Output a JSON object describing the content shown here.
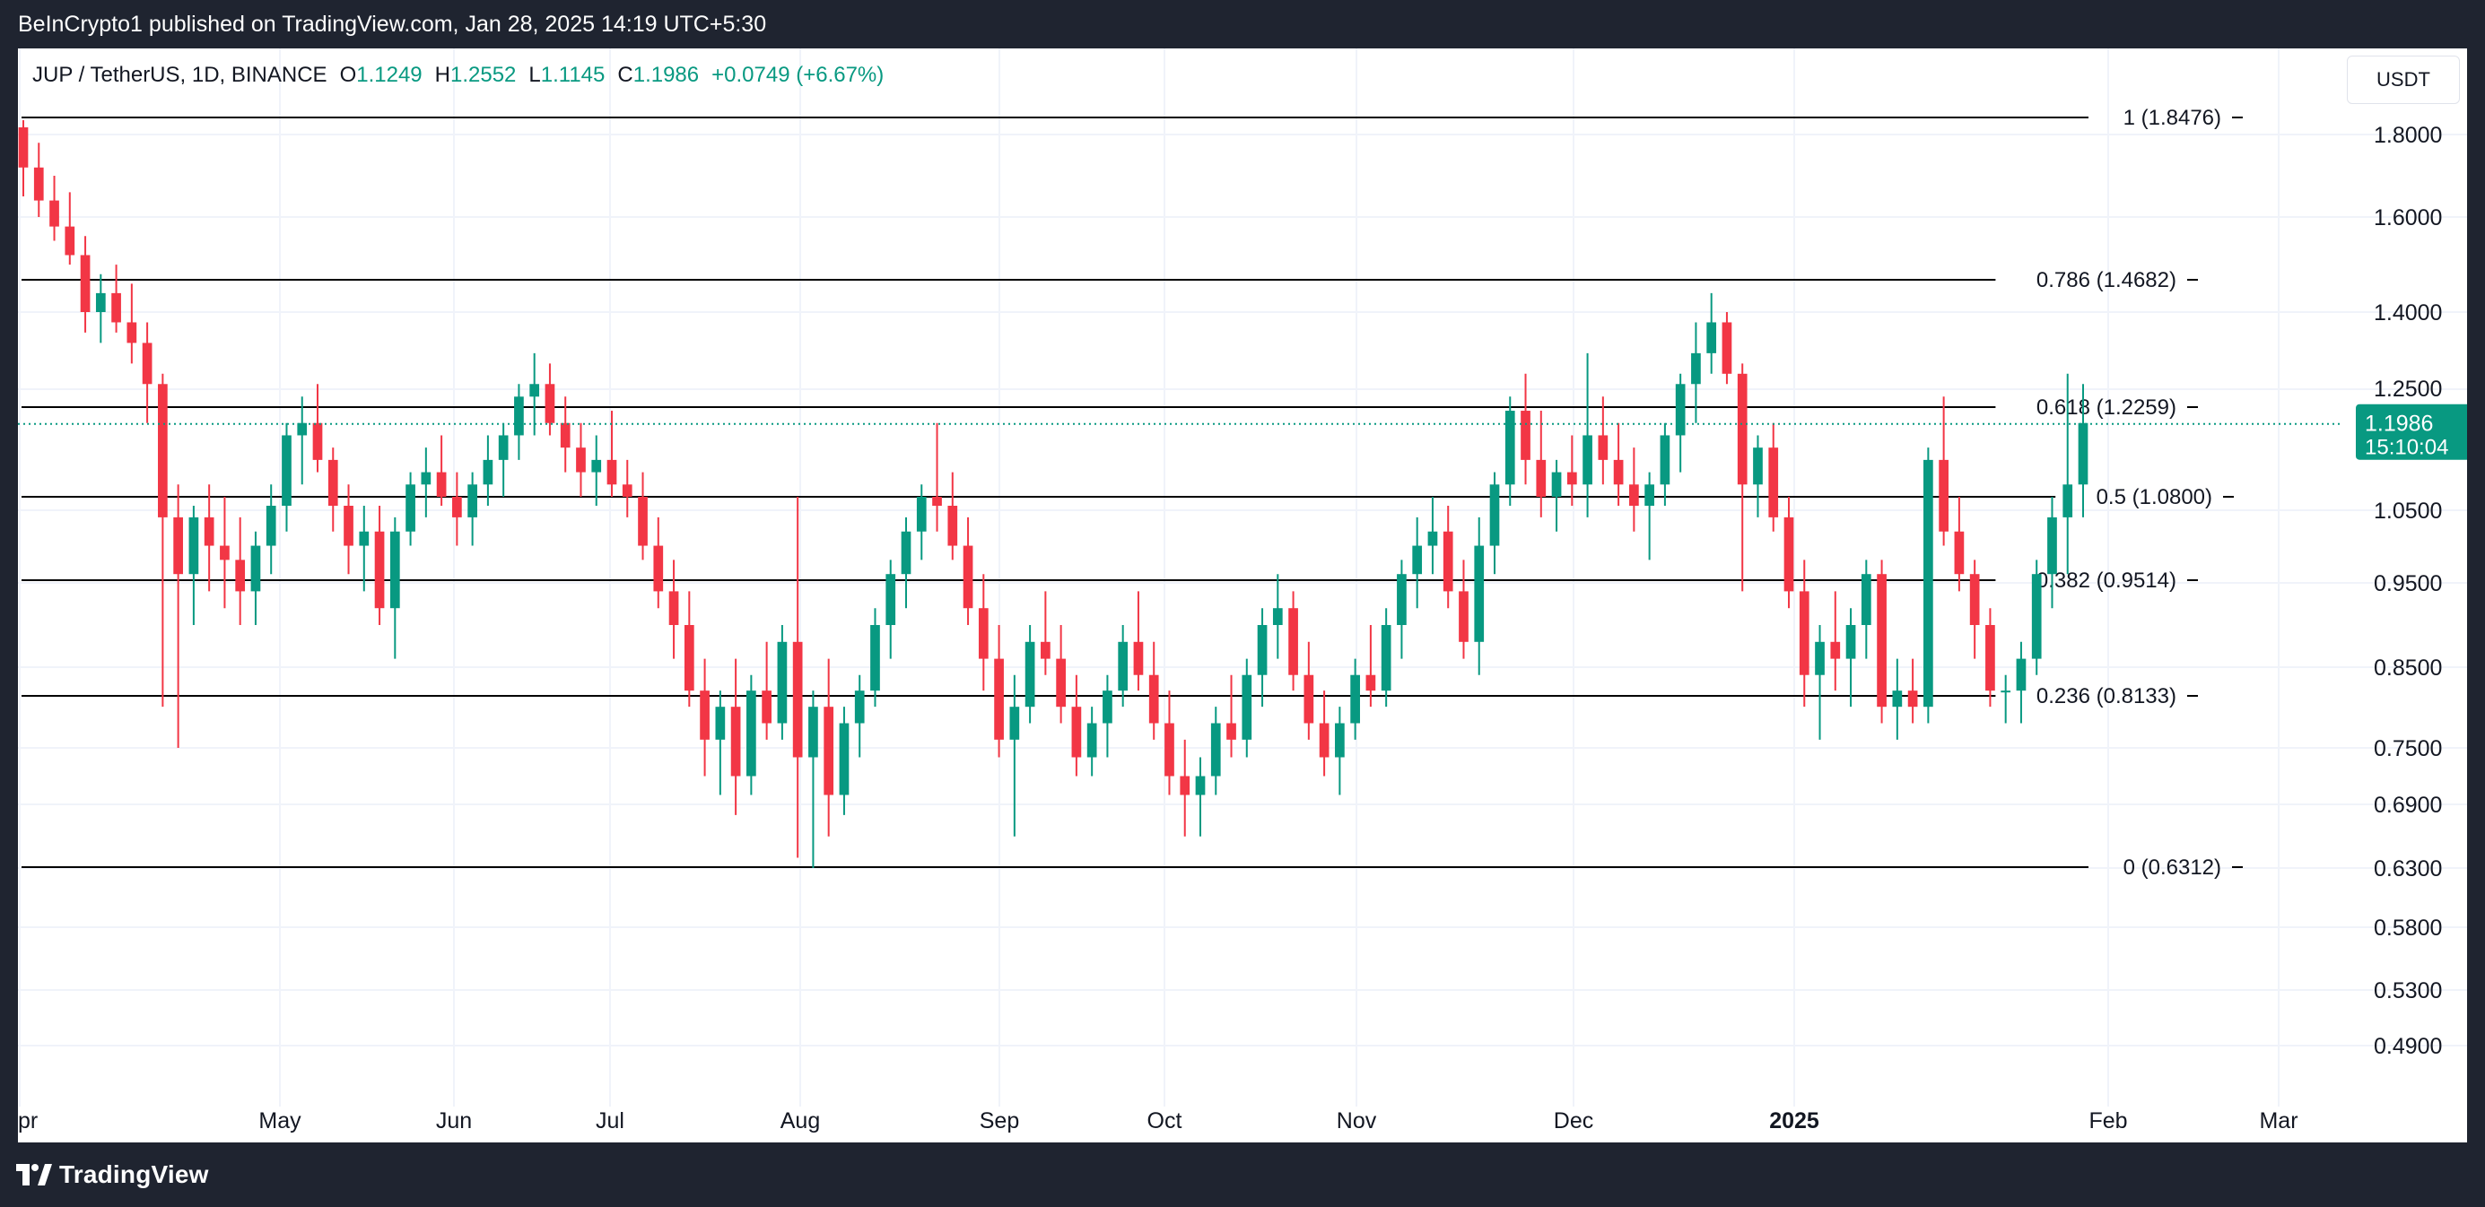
{
  "header": {
    "published_text": "BeInCrypto1 published on TradingView.com, Jan 28, 2025 14:19 UTC+5:30"
  },
  "legend": {
    "symbol": "JUP / TetherUS, 1D, BINANCE",
    "open_label": "O",
    "open_value": "1.1249",
    "high_label": "H",
    "high_value": "1.2552",
    "low_label": "L",
    "low_value": "1.1145",
    "close_label": "C",
    "close_value": "1.1986",
    "change": "+0.0749 (+6.67%)"
  },
  "currency_button": "USDT",
  "footer": {
    "brand": "TradingView"
  },
  "colors": {
    "up": "#089981",
    "down": "#f23645",
    "fib_line": "#000000",
    "last_price_bg": "#089981",
    "grid": "#f0f3fa"
  },
  "chart_data": {
    "type": "candlestick",
    "x_ticks": [
      "pr",
      "May",
      "Jun",
      "Jul",
      "Aug",
      "Sep",
      "Oct",
      "Nov",
      "Dec",
      "2025",
      "Feb",
      "Mar"
    ],
    "y_ticks": [
      "1.8000",
      "1.6000",
      "1.4000",
      "1.2500",
      "1.0500",
      "0.9500",
      "0.8500",
      "0.7500",
      "0.6900",
      "0.6300",
      "0.5800",
      "0.5300",
      "0.4900"
    ],
    "y_tick_values": [
      1.8,
      1.6,
      1.4,
      1.25,
      1.05,
      0.95,
      0.85,
      0.75,
      0.69,
      0.63,
      0.58,
      0.53,
      0.49
    ],
    "fib_levels": [
      {
        "label": "1 (1.8476)",
        "value": 1.8476
      },
      {
        "label": "0.786 (1.4682)",
        "value": 1.4682
      },
      {
        "label": "0.618 (1.2259)",
        "value": 1.2259
      },
      {
        "label": "0.5 (1.0800)",
        "value": 1.08
      },
      {
        "label": "0.382 (0.9514)",
        "value": 0.9514
      },
      {
        "label": "0.236 (0.8133)",
        "value": 0.8133
      },
      {
        "label": "0 (0.6312)",
        "value": 0.6312
      }
    ],
    "last_price": "1.1986",
    "last_price_value": 1.1986,
    "countdown": "15:10:04",
    "candles_ohlc": [
      [
        1.82,
        1.84,
        1.65,
        1.72
      ],
      [
        1.72,
        1.78,
        1.6,
        1.64
      ],
      [
        1.64,
        1.7,
        1.55,
        1.58
      ],
      [
        1.58,
        1.66,
        1.5,
        1.52
      ],
      [
        1.52,
        1.56,
        1.36,
        1.4
      ],
      [
        1.4,
        1.48,
        1.34,
        1.44
      ],
      [
        1.44,
        1.5,
        1.36,
        1.38
      ],
      [
        1.38,
        1.46,
        1.3,
        1.34
      ],
      [
        1.34,
        1.38,
        1.2,
        1.26
      ],
      [
        1.26,
        1.28,
        0.8,
        1.04
      ],
      [
        1.04,
        1.1,
        0.75,
        0.96
      ],
      [
        0.96,
        1.06,
        0.9,
        1.04
      ],
      [
        1.04,
        1.1,
        0.94,
        1.0
      ],
      [
        1.0,
        1.08,
        0.92,
        0.98
      ],
      [
        0.98,
        1.04,
        0.9,
        0.94
      ],
      [
        0.94,
        1.02,
        0.9,
        1.0
      ],
      [
        1.0,
        1.1,
        0.96,
        1.06
      ],
      [
        1.06,
        1.2,
        1.02,
        1.18
      ],
      [
        1.18,
        1.24,
        1.1,
        1.2
      ],
      [
        1.2,
        1.26,
        1.12,
        1.14
      ],
      [
        1.14,
        1.16,
        1.02,
        1.06
      ],
      [
        1.06,
        1.1,
        0.96,
        1.0
      ],
      [
        1.0,
        1.06,
        0.94,
        1.02
      ],
      [
        1.02,
        1.06,
        0.9,
        0.92
      ],
      [
        0.92,
        1.04,
        0.86,
        1.02
      ],
      [
        1.02,
        1.12,
        1.0,
        1.1
      ],
      [
        1.1,
        1.16,
        1.04,
        1.12
      ],
      [
        1.12,
        1.18,
        1.06,
        1.08
      ],
      [
        1.08,
        1.12,
        1.0,
        1.04
      ],
      [
        1.04,
        1.12,
        1.0,
        1.1
      ],
      [
        1.1,
        1.18,
        1.06,
        1.14
      ],
      [
        1.14,
        1.2,
        1.08,
        1.18
      ],
      [
        1.18,
        1.26,
        1.14,
        1.24
      ],
      [
        1.24,
        1.32,
        1.18,
        1.26
      ],
      [
        1.26,
        1.3,
        1.18,
        1.2
      ],
      [
        1.2,
        1.24,
        1.12,
        1.16
      ],
      [
        1.16,
        1.2,
        1.08,
        1.12
      ],
      [
        1.12,
        1.18,
        1.06,
        1.14
      ],
      [
        1.14,
        1.22,
        1.08,
        1.1
      ],
      [
        1.1,
        1.14,
        1.04,
        1.08
      ],
      [
        1.08,
        1.12,
        0.98,
        1.0
      ],
      [
        1.0,
        1.04,
        0.92,
        0.94
      ],
      [
        0.94,
        0.98,
        0.86,
        0.9
      ],
      [
        0.9,
        0.94,
        0.8,
        0.82
      ],
      [
        0.82,
        0.86,
        0.72,
        0.76
      ],
      [
        0.76,
        0.82,
        0.7,
        0.8
      ],
      [
        0.8,
        0.86,
        0.68,
        0.72
      ],
      [
        0.72,
        0.84,
        0.7,
        0.82
      ],
      [
        0.82,
        0.88,
        0.76,
        0.78
      ],
      [
        0.78,
        0.9,
        0.76,
        0.88
      ],
      [
        0.88,
        1.08,
        0.64,
        0.74
      ],
      [
        0.74,
        0.82,
        0.63,
        0.8
      ],
      [
        0.8,
        0.86,
        0.66,
        0.7
      ],
      [
        0.7,
        0.8,
        0.68,
        0.78
      ],
      [
        0.78,
        0.84,
        0.74,
        0.82
      ],
      [
        0.82,
        0.92,
        0.8,
        0.9
      ],
      [
        0.9,
        0.98,
        0.86,
        0.96
      ],
      [
        0.96,
        1.04,
        0.92,
        1.02
      ],
      [
        1.02,
        1.1,
        0.98,
        1.08
      ],
      [
        1.08,
        1.2,
        1.02,
        1.06
      ],
      [
        1.06,
        1.12,
        0.98,
        1.0
      ],
      [
        1.0,
        1.04,
        0.9,
        0.92
      ],
      [
        0.92,
        0.96,
        0.82,
        0.86
      ],
      [
        0.86,
        0.9,
        0.74,
        0.76
      ],
      [
        0.76,
        0.84,
        0.66,
        0.8
      ],
      [
        0.8,
        0.9,
        0.78,
        0.88
      ],
      [
        0.88,
        0.94,
        0.84,
        0.86
      ],
      [
        0.86,
        0.9,
        0.78,
        0.8
      ],
      [
        0.8,
        0.84,
        0.72,
        0.74
      ],
      [
        0.74,
        0.8,
        0.72,
        0.78
      ],
      [
        0.78,
        0.84,
        0.74,
        0.82
      ],
      [
        0.82,
        0.9,
        0.8,
        0.88
      ],
      [
        0.88,
        0.94,
        0.82,
        0.84
      ],
      [
        0.84,
        0.88,
        0.76,
        0.78
      ],
      [
        0.78,
        0.82,
        0.7,
        0.72
      ],
      [
        0.72,
        0.76,
        0.66,
        0.7
      ],
      [
        0.7,
        0.74,
        0.66,
        0.72
      ],
      [
        0.72,
        0.8,
        0.7,
        0.78
      ],
      [
        0.78,
        0.84,
        0.74,
        0.76
      ],
      [
        0.76,
        0.86,
        0.74,
        0.84
      ],
      [
        0.84,
        0.92,
        0.8,
        0.9
      ],
      [
        0.9,
        0.96,
        0.86,
        0.92
      ],
      [
        0.92,
        0.94,
        0.82,
        0.84
      ],
      [
        0.84,
        0.88,
        0.76,
        0.78
      ],
      [
        0.78,
        0.82,
        0.72,
        0.74
      ],
      [
        0.74,
        0.8,
        0.7,
        0.78
      ],
      [
        0.78,
        0.86,
        0.76,
        0.84
      ],
      [
        0.84,
        0.9,
        0.8,
        0.82
      ],
      [
        0.82,
        0.92,
        0.8,
        0.9
      ],
      [
        0.9,
        0.98,
        0.86,
        0.96
      ],
      [
        0.96,
        1.04,
        0.92,
        1.0
      ],
      [
        1.0,
        1.08,
        0.96,
        1.02
      ],
      [
        1.02,
        1.06,
        0.92,
        0.94
      ],
      [
        0.94,
        0.98,
        0.86,
        0.88
      ],
      [
        0.88,
        1.04,
        0.84,
        1.0
      ],
      [
        1.0,
        1.12,
        0.96,
        1.1
      ],
      [
        1.1,
        1.24,
        1.06,
        1.22
      ],
      [
        1.22,
        1.28,
        1.1,
        1.14
      ],
      [
        1.14,
        1.22,
        1.04,
        1.08
      ],
      [
        1.08,
        1.14,
        1.02,
        1.12
      ],
      [
        1.12,
        1.18,
        1.06,
        1.1
      ],
      [
        1.1,
        1.32,
        1.04,
        1.18
      ],
      [
        1.18,
        1.24,
        1.1,
        1.14
      ],
      [
        1.14,
        1.2,
        1.06,
        1.1
      ],
      [
        1.1,
        1.16,
        1.02,
        1.06
      ],
      [
        1.06,
        1.12,
        0.98,
        1.1
      ],
      [
        1.1,
        1.2,
        1.06,
        1.18
      ],
      [
        1.18,
        1.28,
        1.12,
        1.26
      ],
      [
        1.26,
        1.38,
        1.2,
        1.32
      ],
      [
        1.32,
        1.44,
        1.28,
        1.38
      ],
      [
        1.38,
        1.4,
        1.26,
        1.28
      ],
      [
        1.28,
        1.3,
        0.94,
        1.1
      ],
      [
        1.1,
        1.18,
        1.04,
        1.16
      ],
      [
        1.16,
        1.2,
        1.02,
        1.04
      ],
      [
        1.04,
        1.08,
        0.92,
        0.94
      ],
      [
        0.94,
        0.98,
        0.8,
        0.84
      ],
      [
        0.84,
        0.9,
        0.76,
        0.88
      ],
      [
        0.88,
        0.94,
        0.82,
        0.86
      ],
      [
        0.86,
        0.92,
        0.8,
        0.9
      ],
      [
        0.9,
        0.98,
        0.86,
        0.96
      ],
      [
        0.96,
        0.98,
        0.78,
        0.8
      ],
      [
        0.8,
        0.86,
        0.76,
        0.82
      ],
      [
        0.82,
        0.86,
        0.78,
        0.8
      ],
      [
        0.8,
        1.16,
        0.78,
        1.14
      ],
      [
        1.14,
        1.24,
        1.0,
        1.02
      ],
      [
        1.02,
        1.08,
        0.94,
        0.96
      ],
      [
        0.96,
        0.98,
        0.86,
        0.9
      ],
      [
        0.9,
        0.92,
        0.8,
        0.82
      ],
      [
        0.82,
        0.84,
        0.78,
        0.82
      ],
      [
        0.82,
        0.88,
        0.78,
        0.86
      ],
      [
        0.86,
        0.98,
        0.84,
        0.96
      ],
      [
        0.96,
        1.08,
        0.92,
        1.04
      ],
      [
        1.04,
        1.28,
        0.96,
        1.1
      ],
      [
        1.1,
        1.26,
        1.04,
        1.2
      ]
    ]
  }
}
